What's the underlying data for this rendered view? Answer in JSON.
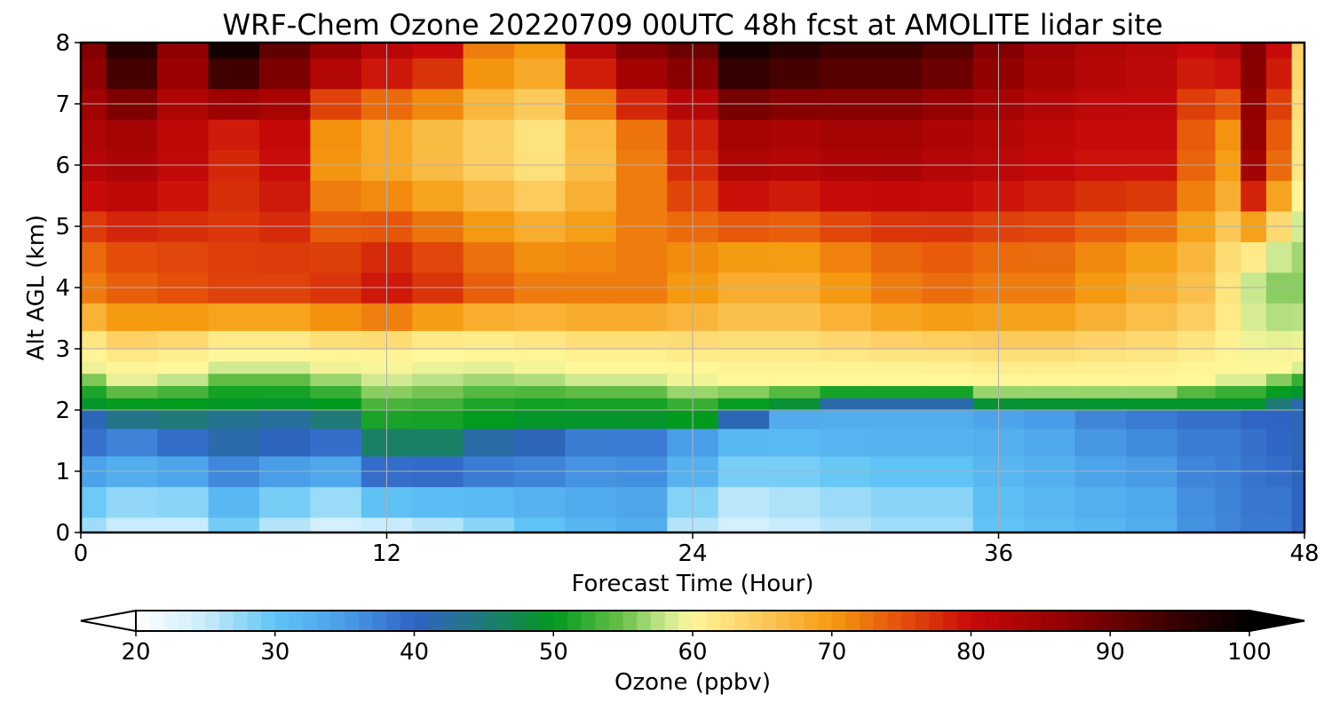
{
  "chart_data": {
    "type": "heatmap",
    "title": "WRF-Chem Ozone  20220709 00UTC 48h fcst at AMOLITE lidar site",
    "xlabel": "Forecast Time (Hour)",
    "ylabel": "Alt AGL (km)",
    "xlim": [
      0,
      48
    ],
    "ylim": [
      0,
      8
    ],
    "x_ticks": [
      "0",
      "12",
      "24",
      "36",
      "48"
    ],
    "y_ticks": [
      "0",
      "1",
      "2",
      "3",
      "4",
      "5",
      "6",
      "7",
      "8"
    ],
    "grid": true,
    "colorbar": {
      "label": "Ozone  (ppbv)",
      "range": [
        20,
        100
      ],
      "ticks": [
        "20",
        "30",
        "40",
        "50",
        "60",
        "70",
        "80",
        "90",
        "100"
      ],
      "extend": "both",
      "orientation": "horizontal"
    },
    "colormap": [
      {
        "v": 20,
        "c": "#ffffff"
      },
      {
        "v": 25,
        "c": "#c8ecfb"
      },
      {
        "v": 30,
        "c": "#5fc4f5"
      },
      {
        "v": 35,
        "c": "#4a9ee8"
      },
      {
        "v": 40,
        "c": "#2f63c4"
      },
      {
        "v": 45,
        "c": "#1f7a78"
      },
      {
        "v": 50,
        "c": "#009a1e"
      },
      {
        "v": 55,
        "c": "#6cc04a"
      },
      {
        "v": 58,
        "c": "#c8e890"
      },
      {
        "v": 60,
        "c": "#fff79a"
      },
      {
        "v": 65,
        "c": "#fcc95a"
      },
      {
        "v": 70,
        "c": "#f59a10"
      },
      {
        "v": 75,
        "c": "#e5500a"
      },
      {
        "v": 80,
        "c": "#c80a0a"
      },
      {
        "v": 87,
        "c": "#900000"
      },
      {
        "v": 93,
        "c": "#4a0000"
      },
      {
        "v": 100,
        "c": "#000000"
      }
    ],
    "x_hours": [
      0,
      2,
      4,
      6,
      8,
      10,
      12,
      14,
      16,
      18,
      20,
      22,
      24,
      26,
      28,
      30,
      32,
      34,
      36,
      38,
      40,
      42,
      44,
      45,
      46,
      47,
      48
    ],
    "z_km": [
      0,
      0.5,
      1,
      1.5,
      1.9,
      2.1,
      2.3,
      2.5,
      2.7,
      2.9,
      3.1,
      3.5,
      4,
      4.5,
      5,
      5.5,
      6,
      6.5,
      7,
      7.5,
      8
    ],
    "profiles": [
      {
        "p_low": 27,
        "p_top": 40,
        "z_tr": 2.1,
        "g_top": 2.8,
        "v_mid": 72,
        "v_up": 83,
        "v_top": 88
      },
      {
        "p_low": 25,
        "p_top": 38,
        "z_tr": 2.0,
        "g_top": 2.6,
        "v_mid": 74,
        "v_up": 84,
        "v_top": 96
      },
      {
        "p_low": 25,
        "p_top": 40,
        "z_tr": 2.0,
        "g_top": 2.7,
        "v_mid": 75,
        "v_up": 81,
        "v_top": 87
      },
      {
        "p_low": 29,
        "p_top": 43,
        "z_tr": 2.1,
        "g_top": 2.9,
        "v_mid": 76,
        "v_up": 78,
        "v_top": 98
      },
      {
        "p_low": 26,
        "p_top": 42,
        "z_tr": 2.1,
        "g_top": 2.9,
        "v_mid": 76,
        "v_up": 80,
        "v_top": 91
      },
      {
        "p_low": 24,
        "p_top": 40,
        "z_tr": 2.0,
        "g_top": 2.8,
        "v_mid": 77,
        "v_up": 70,
        "v_top": 86
      },
      {
        "p_low": 25,
        "p_top": 42,
        "z_tr": 1.6,
        "g_top": 2.8,
        "v_mid": 79,
        "v_up": 68,
        "v_top": 82
      },
      {
        "p_low": 26,
        "p_top": 42,
        "z_tr": 1.6,
        "g_top": 2.9,
        "v_mid": 77,
        "v_up": 66,
        "v_top": 80
      },
      {
        "p_low": 28,
        "p_top": 42,
        "z_tr": 1.8,
        "g_top": 2.9,
        "v_mid": 74,
        "v_up": 64,
        "v_top": 72
      },
      {
        "p_low": 30,
        "p_top": 41,
        "z_tr": 1.9,
        "g_top": 2.8,
        "v_mid": 72,
        "v_up": 62,
        "v_top": 70
      },
      {
        "p_low": 32,
        "p_top": 38,
        "z_tr": 1.9,
        "g_top": 2.7,
        "v_mid": 72,
        "v_up": 66,
        "v_top": 82
      },
      {
        "p_low": 33,
        "p_top": 38,
        "z_tr": 1.9,
        "g_top": 2.7,
        "v_mid": 72,
        "v_up": 72,
        "v_top": 88
      },
      {
        "p_low": 26,
        "p_top": 35,
        "z_tr": 1.8,
        "g_top": 2.6,
        "v_mid": 70,
        "v_up": 78,
        "v_top": 90
      },
      {
        "p_low": 24,
        "p_top": 32,
        "z_tr": 2.0,
        "g_top": 2.5,
        "v_mid": 68,
        "v_up": 84,
        "v_top": 98
      },
      {
        "p_low": 25,
        "p_top": 32,
        "z_tr": 2.1,
        "g_top": 2.5,
        "v_mid": 68,
        "v_up": 83,
        "v_top": 96
      },
      {
        "p_low": 26,
        "p_top": 33,
        "z_tr": 2.2,
        "g_top": 2.5,
        "v_mid": 70,
        "v_up": 84,
        "v_top": 94
      },
      {
        "p_low": 27,
        "p_top": 33,
        "z_tr": 2.2,
        "g_top": 2.5,
        "v_mid": 72,
        "v_up": 84,
        "v_top": 94
      },
      {
        "p_low": 27,
        "p_top": 33,
        "z_tr": 2.2,
        "g_top": 2.5,
        "v_mid": 73,
        "v_up": 83,
        "v_top": 92
      },
      {
        "p_low": 30,
        "p_top": 33,
        "z_tr": 2.1,
        "g_top": 2.4,
        "v_mid": 72,
        "v_up": 82,
        "v_top": 88
      },
      {
        "p_low": 31,
        "p_top": 34,
        "z_tr": 2.1,
        "g_top": 2.4,
        "v_mid": 72,
        "v_up": 81,
        "v_top": 85
      },
      {
        "p_low": 32,
        "p_top": 36,
        "z_tr": 2.1,
        "g_top": 2.4,
        "v_mid": 70,
        "v_up": 80,
        "v_top": 83
      },
      {
        "p_low": 33,
        "p_top": 37,
        "z_tr": 2.1,
        "g_top": 2.4,
        "v_mid": 68,
        "v_up": 80,
        "v_top": 82
      },
      {
        "p_low": 36,
        "p_top": 38,
        "z_tr": 2.1,
        "g_top": 2.5,
        "v_mid": 66,
        "v_up": 74,
        "v_top": 80
      },
      {
        "p_low": 37,
        "p_top": 38,
        "z_tr": 2.1,
        "g_top": 2.6,
        "v_mid": 62,
        "v_up": 70,
        "v_top": 82
      },
      {
        "p_low": 38,
        "p_top": 39,
        "z_tr": 2.1,
        "g_top": 2.6,
        "v_mid": 58,
        "v_up": 86,
        "v_top": 88
      },
      {
        "p_low": 38,
        "p_top": 40,
        "z_tr": 2.2,
        "g_top": 2.7,
        "v_mid": 56,
        "v_up": 74,
        "v_top": 80
      },
      {
        "p_low": 40,
        "p_top": 41,
        "z_tr": 2.3,
        "g_top": 2.8,
        "v_mid": 56,
        "v_up": 62,
        "v_top": 64
      }
    ]
  }
}
